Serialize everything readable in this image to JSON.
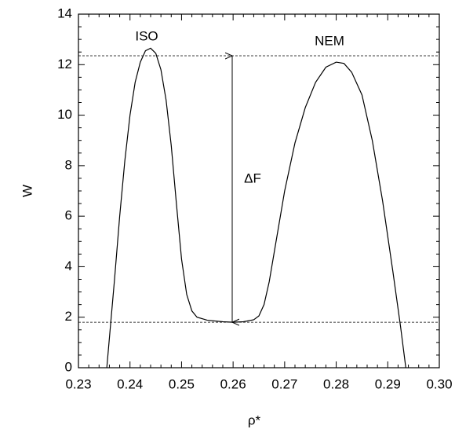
{
  "chart_data": {
    "type": "line",
    "x_label": "ρ*",
    "y_label": "W",
    "xlim": [
      0.23,
      0.3
    ],
    "xticks": [
      0.23,
      0.24,
      0.25,
      0.26,
      0.27,
      0.28,
      0.29,
      {
        "value": 0.3,
        "label": "0.30"
      }
    ],
    "xminorticks": [
      0.232,
      0.234,
      0.236,
      0.238,
      0.242,
      0.244,
      0.246,
      0.248,
      0.252,
      0.254,
      0.256,
      0.258,
      0.262,
      0.264,
      0.266,
      0.268,
      0.272,
      0.274,
      0.276,
      0.278,
      0.282,
      0.284,
      0.286,
      0.288,
      0.292,
      0.294,
      0.296,
      0.298
    ],
    "ylim": [
      0,
      14
    ],
    "yticks": [
      0,
      2,
      4,
      6,
      8,
      10,
      12,
      14
    ],
    "yminorticks": [
      0.5,
      1,
      1.5,
      2.5,
      3,
      3.5,
      4.5,
      5,
      5.5,
      6.5,
      7,
      7.5,
      8.5,
      9,
      9.5,
      10.5,
      11,
      11.5,
      12.5,
      13,
      13.5
    ],
    "series": [
      {
        "color": "#000000",
        "x": [
          0.2355,
          0.237,
          0.238,
          0.239,
          0.24,
          0.241,
          0.242,
          0.243,
          0.244,
          0.245,
          0.246,
          0.247,
          0.248,
          0.249,
          0.25,
          0.251,
          0.252,
          0.253,
          0.255,
          0.258,
          0.26,
          0.262,
          0.264,
          0.265,
          0.266,
          0.267,
          0.268,
          0.27,
          0.272,
          0.274,
          0.276,
          0.278,
          0.28,
          0.2815,
          0.283,
          0.285,
          0.287,
          0.289,
          0.291,
          0.2925,
          0.2935
        ],
        "values": [
          0,
          3.5,
          6.0,
          8.2,
          10.0,
          11.3,
          12.1,
          12.55,
          12.65,
          12.45,
          11.8,
          10.6,
          8.8,
          6.5,
          4.3,
          2.9,
          2.25,
          2.0,
          1.88,
          1.82,
          1.8,
          1.82,
          1.9,
          2.05,
          2.5,
          3.4,
          4.6,
          7.0,
          8.9,
          10.3,
          11.3,
          11.9,
          12.1,
          12.05,
          11.7,
          10.8,
          9.0,
          6.6,
          3.8,
          1.6,
          0
        ]
      }
    ],
    "hlines": [
      12.35,
      1.8
    ],
    "annotations": [
      "ISO",
      "NEM",
      "ΔF"
    ]
  }
}
